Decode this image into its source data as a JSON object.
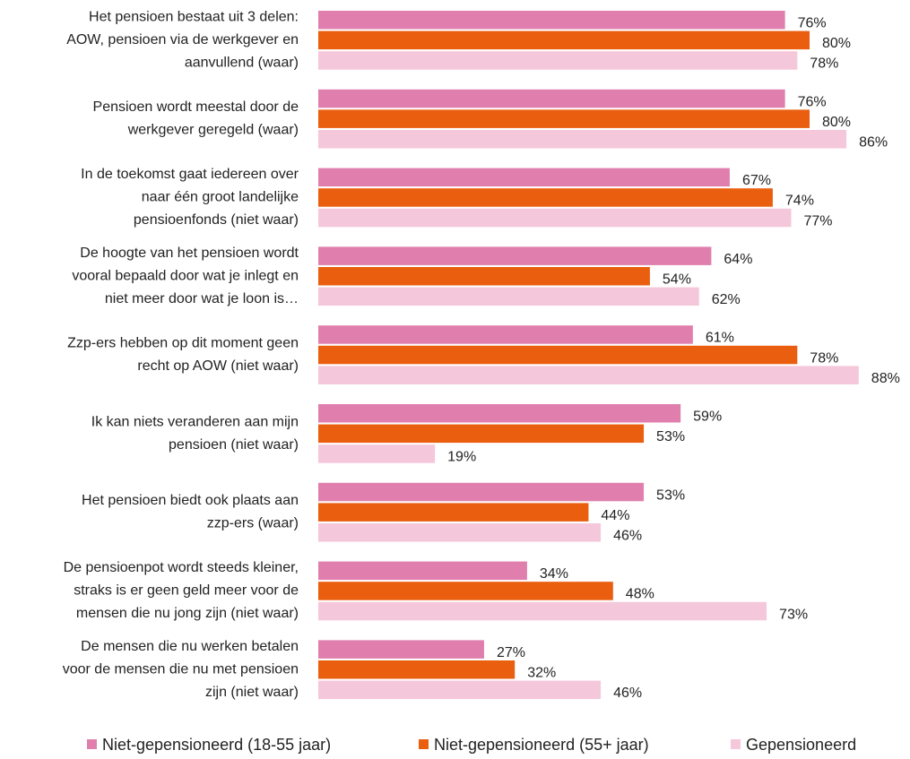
{
  "chart_data": {
    "type": "bar",
    "orientation": "horizontal",
    "categories": [
      [
        "Het pensioen bestaat uit 3 delen:",
        "AOW,  pensioen via de werkgever en",
        "aanvullend (waar)"
      ],
      [
        "Pensioen wordt meestal door de",
        "werkgever geregeld (waar)"
      ],
      [
        "In de toekomst gaat iedereen over",
        "naar één groot landelijke",
        "pensioenfonds (niet waar)"
      ],
      [
        "De hoogte van het pensioen wordt",
        "vooral bepaald door wat je inlegt en",
        "niet meer door wat je loon is…"
      ],
      [
        "Zzp-ers hebben op dit moment geen",
        "recht op AOW (niet waar)"
      ],
      [
        "Ik kan niets veranderen aan mijn",
        "pensioen (niet waar)"
      ],
      [
        "Het pensioen biedt ook plaats aan",
        "zzp-ers (waar)"
      ],
      [
        "De pensioenpot wordt steeds kleiner,",
        "straks is er geen geld meer voor de",
        "mensen die nu jong zijn (niet waar)"
      ],
      [
        "De mensen die nu werken betalen",
        "voor de mensen die nu met pensioen",
        "zijn (niet waar)"
      ]
    ],
    "series": [
      {
        "name": "Niet-gepensioneerd (18-55 jaar)",
        "color": "#e07fad",
        "values": [
          76,
          76,
          67,
          64,
          61,
          59,
          53,
          34,
          27
        ],
        "value_labels": [
          "76%",
          "76%",
          "67%",
          "64%",
          "61%",
          "59%",
          "53%",
          "34%",
          "27%"
        ]
      },
      {
        "name": "Niet-gepensioneerd (55+ jaar)",
        "color": "#e95e0f",
        "values": [
          80,
          80,
          74,
          54,
          78,
          53,
          44,
          48,
          32
        ],
        "value_labels": [
          "80%",
          "80%",
          "74%",
          "54%",
          "78%",
          "53%",
          "44%",
          "48%",
          "32%"
        ]
      },
      {
        "name": "Gepensioneerd",
        "color": "#f5c7da",
        "values": [
          78,
          86,
          77,
          62,
          88,
          19,
          46,
          73,
          46
        ],
        "value_labels": [
          "78%",
          "86%",
          "77%",
          "62%",
          "88%",
          "19%",
          "46%",
          "73%",
          "46%"
        ]
      }
    ],
    "legend": "bottom"
  }
}
